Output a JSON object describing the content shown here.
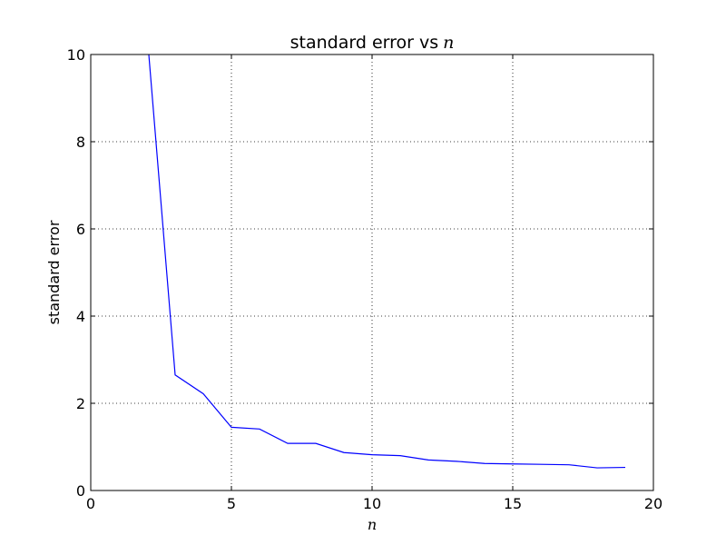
{
  "chart_data": {
    "type": "line",
    "title": "standard error vs",
    "title_math": "n",
    "xlabel": "n",
    "ylabel": "standard error",
    "xlim": [
      0,
      20
    ],
    "ylim": [
      0,
      10
    ],
    "xticks": [
      "0",
      "5",
      "10",
      "15",
      "20"
    ],
    "yticks": [
      "0",
      "2",
      "4",
      "6",
      "8",
      "10"
    ],
    "grid": true,
    "series": [
      {
        "color": "#0000ff",
        "x": [
          2,
          3,
          4,
          5,
          6,
          7,
          8,
          9,
          10,
          11,
          12,
          13,
          14,
          15,
          16,
          17,
          18,
          19
        ],
        "y": [
          10.5,
          2.65,
          2.22,
          1.45,
          1.41,
          1.08,
          1.08,
          0.87,
          0.82,
          0.8,
          0.7,
          0.67,
          0.62,
          0.61,
          0.6,
          0.59,
          0.52,
          0.53
        ]
      }
    ]
  }
}
